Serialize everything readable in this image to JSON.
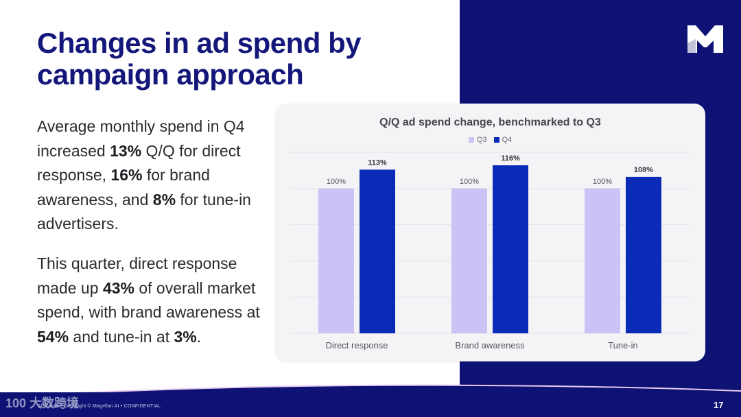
{
  "slide": {
    "title_line1": "Changes in ad spend by",
    "title_line2": "campaign approach",
    "page_number": "17",
    "footer_text": "All Content Copyright © Magellan AI • CONFIDENTIAL",
    "watermark": "100 大数跨境",
    "logo_letter": "M"
  },
  "body": {
    "p1": [
      {
        "text": "Average monthly spend in Q4 increased ",
        "bold": false
      },
      {
        "text": "13%",
        "bold": true
      },
      {
        "text": " Q/Q for direct response, ",
        "bold": false
      },
      {
        "text": "16%",
        "bold": true
      },
      {
        "text": " for brand awareness, and ",
        "bold": false
      },
      {
        "text": "8%",
        "bold": true
      },
      {
        "text": " for tune-in advertisers.",
        "bold": false
      }
    ],
    "p2": [
      {
        "text": "This quarter, direct response made up ",
        "bold": false
      },
      {
        "text": "43%",
        "bold": true
      },
      {
        "text": " of overall market spend, with brand awareness at ",
        "bold": false
      },
      {
        "text": "54%",
        "bold": true
      },
      {
        "text": " and tune-in at ",
        "bold": false
      },
      {
        "text": "3%",
        "bold": true
      },
      {
        "text": ".",
        "bold": false
      }
    ]
  },
  "colors": {
    "navy": "#0e1274",
    "q3": "#cbc3f5",
    "q4": "#0a2bb8"
  },
  "chart_data": {
    "type": "bar",
    "title": "Q/Q ad spend change, benchmarked to Q3",
    "categories": [
      "Direct response",
      "Brand awareness",
      "Tune-in"
    ],
    "series": [
      {
        "name": "Q3",
        "values": [
          100,
          100,
          100
        ],
        "labels": [
          "100%",
          "100%",
          "100%"
        ]
      },
      {
        "name": "Q4",
        "values": [
          113,
          116,
          108
        ],
        "labels": [
          "113%",
          "116%",
          "108%"
        ]
      }
    ],
    "ylim": [
      0,
      125
    ],
    "grid": true,
    "legend": "top-center",
    "xlabel": "",
    "ylabel": ""
  }
}
